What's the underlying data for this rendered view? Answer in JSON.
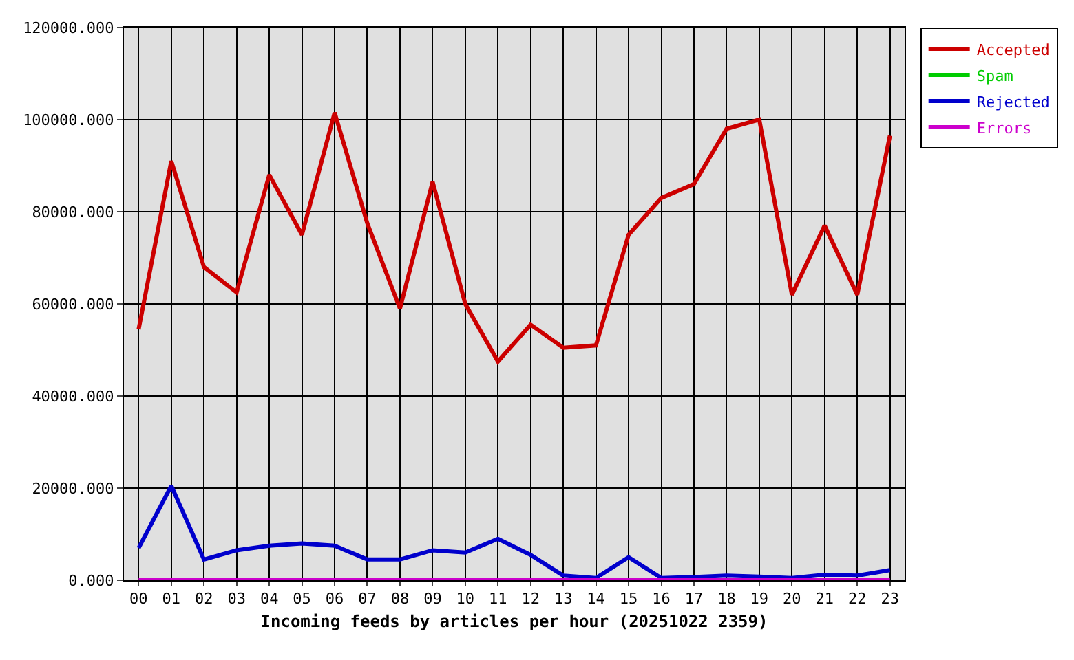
{
  "chart_data": {
    "type": "line",
    "xlabel": "Incoming feeds by articles per hour (20251022 2359)",
    "categories": [
      "00",
      "01",
      "02",
      "03",
      "04",
      "05",
      "06",
      "07",
      "08",
      "09",
      "10",
      "11",
      "12",
      "13",
      "14",
      "15",
      "16",
      "17",
      "18",
      "19",
      "20",
      "21",
      "22",
      "23"
    ],
    "series": [
      {
        "name": "Accepted",
        "color": "#cc0000",
        "values": [
          54500,
          91000,
          68000,
          62500,
          88000,
          75000,
          101500,
          77500,
          59000,
          86500,
          60000,
          47500,
          55500,
          50500,
          51000,
          75000,
          83000,
          86000,
          98000,
          100000,
          62000,
          77000,
          62000,
          96500
        ]
      },
      {
        "name": "Spam",
        "color": "#00cc00",
        "values": [
          null,
          null,
          null,
          null,
          null,
          null,
          null,
          null,
          null,
          null,
          null,
          null,
          null,
          null,
          null,
          null,
          null,
          null,
          null,
          null,
          null,
          null,
          null,
          null
        ]
      },
      {
        "name": "Rejected",
        "color": "#0000cc",
        "values": [
          7000,
          20500,
          4500,
          6500,
          7500,
          8000,
          7500,
          4500,
          4500,
          6500,
          6000,
          9000,
          5500,
          1000,
          500,
          5000,
          500,
          700,
          1000,
          800,
          500,
          1200,
          1000,
          2200
        ]
      },
      {
        "name": "Errors",
        "color": "#cc00cc",
        "values": [
          0,
          0,
          0,
          0,
          0,
          0,
          0,
          0,
          0,
          0,
          0,
          0,
          0,
          0,
          0,
          0,
          0,
          0,
          0,
          0,
          0,
          0,
          0,
          0
        ]
      }
    ],
    "ylim": [
      0,
      120000
    ],
    "yticks": [
      {
        "value": 0,
        "label": "0.000"
      },
      {
        "value": 20000,
        "label": "20000.000"
      },
      {
        "value": 40000,
        "label": "40000.000"
      },
      {
        "value": 60000,
        "label": "60000.000"
      },
      {
        "value": 80000,
        "label": "80000.000"
      },
      {
        "value": 100000,
        "label": "100000.000"
      },
      {
        "value": 120000,
        "label": "120000.000"
      }
    ],
    "grid": true,
    "legend": "top right",
    "line_style": "solid"
  }
}
